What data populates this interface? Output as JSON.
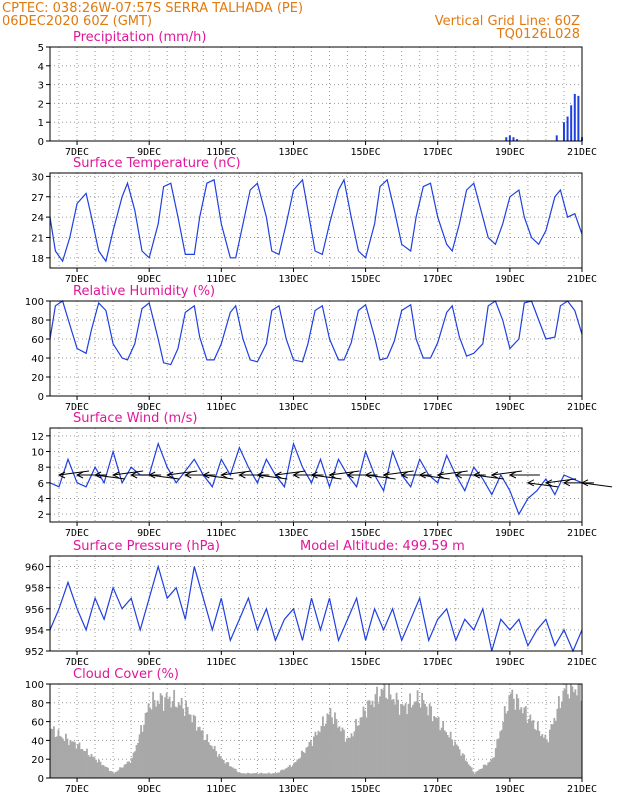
{
  "header": {
    "source_coords": "CPTEC:  038:26W-07:57S  SERRA TALHADA (PE)",
    "run_time": "06DEC2020 60Z (GMT)",
    "grid_line": "Vertical Grid Line: 60Z",
    "code": "TQ0126L028"
  },
  "colors": {
    "header_text": "#e07a10",
    "title_text": "#e0179a",
    "series_line": "#1f3fe0",
    "bar_fill": "#1f3fe0",
    "cloud_fill": "#a8a8a8",
    "grid": "#9a9a9a"
  },
  "x_axis": {
    "start": "06DEC2020 06Z",
    "end": "21DEC2020 00Z",
    "tick_labels": [
      "7DEC",
      "9DEC",
      "11DEC",
      "13DEC",
      "15DEC",
      "17DEC",
      "19DEC",
      "21DEC"
    ],
    "grid": "dotted, every 12h"
  },
  "chart_data": [
    {
      "type": "bar",
      "title": "Precipitation (mm/h)",
      "ylim": [
        0,
        5
      ],
      "yticks": [
        0,
        1,
        2,
        3,
        4,
        5
      ],
      "x": [
        18.9,
        19.0,
        19.1,
        19.2,
        20.3,
        20.5,
        20.6,
        20.7,
        20.8,
        20.9,
        21.0
      ],
      "values": [
        0.2,
        0.3,
        0.2,
        0.1,
        0.3,
        1.0,
        1.3,
        1.9,
        2.5,
        2.4,
        0.2
      ]
    },
    {
      "type": "line",
      "title": "Surface Temperature (nC)",
      "ylim": [
        16.5,
        30.5
      ],
      "yticks": [
        18,
        21,
        24,
        27,
        30
      ],
      "x": [
        6.25,
        6.4,
        6.6,
        6.8,
        7.0,
        7.25,
        7.4,
        7.6,
        7.8,
        8.0,
        8.25,
        8.4,
        8.6,
        8.8,
        9.0,
        9.25,
        9.4,
        9.6,
        9.8,
        10.0,
        10.25,
        10.4,
        10.6,
        10.8,
        11.0,
        11.25,
        11.4,
        11.6,
        11.8,
        12.0,
        12.25,
        12.4,
        12.6,
        12.8,
        13.0,
        13.25,
        13.4,
        13.6,
        13.8,
        14.0,
        14.25,
        14.4,
        14.6,
        14.8,
        15.0,
        15.25,
        15.4,
        15.6,
        15.8,
        16.0,
        16.25,
        16.4,
        16.6,
        16.8,
        17.0,
        17.25,
        17.4,
        17.6,
        17.8,
        18.0,
        18.25,
        18.4,
        18.6,
        18.8,
        19.0,
        19.25,
        19.4,
        19.6,
        19.8,
        20.0,
        20.25,
        20.4,
        20.6,
        20.8,
        21.0
      ],
      "values": [
        24,
        19,
        17.5,
        21,
        26,
        27.5,
        24,
        19,
        17.5,
        22,
        27,
        29,
        25,
        19,
        18,
        23,
        28.5,
        29,
        24,
        18.5,
        18.5,
        24,
        29,
        29.5,
        23,
        18,
        18,
        23,
        28,
        29,
        24,
        19,
        18.5,
        23,
        28,
        29.5,
        25,
        19,
        18.5,
        23,
        28,
        29.5,
        24,
        19,
        18,
        23,
        28.5,
        29.5,
        25,
        20,
        19,
        24,
        28.5,
        29,
        24,
        20,
        19,
        23,
        28,
        29,
        24,
        21,
        20,
        23,
        27,
        28,
        24,
        21,
        20,
        22,
        27,
        28,
        24,
        24.5,
        21.5
      ]
    },
    {
      "type": "line",
      "title": "Relative Humidity (%)",
      "ylim": [
        0,
        100
      ],
      "yticks": [
        0,
        20,
        40,
        60,
        80,
        100
      ],
      "x": [
        6.25,
        6.4,
        6.6,
        6.8,
        7.0,
        7.25,
        7.4,
        7.6,
        7.8,
        8.0,
        8.25,
        8.4,
        8.6,
        8.8,
        9.0,
        9.25,
        9.4,
        9.6,
        9.8,
        10.0,
        10.25,
        10.4,
        10.6,
        10.8,
        11.0,
        11.25,
        11.4,
        11.6,
        11.8,
        12.0,
        12.25,
        12.4,
        12.6,
        12.8,
        13.0,
        13.25,
        13.4,
        13.6,
        13.8,
        14.0,
        14.25,
        14.4,
        14.6,
        14.8,
        15.0,
        15.25,
        15.4,
        15.6,
        15.8,
        16.0,
        16.25,
        16.4,
        16.6,
        16.8,
        17.0,
        17.25,
        17.4,
        17.6,
        17.8,
        18.0,
        18.25,
        18.4,
        18.6,
        18.8,
        19.0,
        19.25,
        19.4,
        19.6,
        19.8,
        20.0,
        20.25,
        20.4,
        20.6,
        20.8,
        21.0
      ],
      "values": [
        60,
        95,
        100,
        75,
        50,
        45,
        70,
        98,
        90,
        55,
        40,
        38,
        55,
        92,
        98,
        60,
        35,
        33,
        50,
        88,
        95,
        62,
        38,
        38,
        55,
        88,
        95,
        60,
        38,
        36,
        55,
        90,
        95,
        60,
        38,
        36,
        55,
        90,
        95,
        60,
        38,
        38,
        56,
        90,
        96,
        62,
        38,
        40,
        58,
        90,
        96,
        60,
        40,
        40,
        56,
        88,
        95,
        62,
        42,
        45,
        55,
        95,
        100,
        80,
        50,
        60,
        98,
        100,
        80,
        60,
        62,
        95,
        100,
        90,
        65
      ]
    },
    {
      "type": "line",
      "title": "Surface Wind (m/s)",
      "ylim": [
        1,
        13
      ],
      "yticks": [
        2,
        4,
        6,
        8,
        10,
        12
      ],
      "x": [
        6.25,
        6.5,
        6.75,
        7.0,
        7.25,
        7.5,
        7.75,
        8.0,
        8.25,
        8.5,
        8.75,
        9.0,
        9.25,
        9.5,
        9.75,
        10.0,
        10.25,
        10.5,
        10.75,
        11.0,
        11.25,
        11.5,
        11.75,
        12.0,
        12.25,
        12.5,
        12.75,
        13.0,
        13.25,
        13.5,
        13.75,
        14.0,
        14.25,
        14.5,
        14.75,
        15.0,
        15.25,
        15.5,
        15.75,
        16.0,
        16.25,
        16.5,
        16.75,
        17.0,
        17.25,
        17.5,
        17.75,
        18.0,
        18.25,
        18.5,
        18.75,
        19.0,
        19.25,
        19.5,
        19.75,
        20.0,
        20.25,
        20.5,
        20.75,
        21.0
      ],
      "values": [
        6,
        5.5,
        9,
        6,
        5.5,
        8,
        6,
        10,
        6,
        8,
        7,
        7,
        11,
        8,
        6,
        7.5,
        9,
        7,
        5.5,
        9,
        7,
        10.5,
        8,
        6,
        9,
        7,
        5.5,
        11,
        8,
        6,
        9,
        5.5,
        9,
        7,
        5.5,
        10,
        7,
        5,
        10,
        7,
        5.5,
        9,
        7,
        6,
        9.5,
        7,
        5,
        8,
        6.5,
        4.5,
        7,
        5,
        2,
        4,
        5,
        6.5,
        4.5,
        7,
        6.5,
        6
      ],
      "arrows": {
        "x": [
          6.5,
          7.0,
          7.5,
          8.0,
          8.5,
          9.0,
          9.5,
          10.0,
          10.5,
          11.0,
          11.5,
          12.0,
          12.5,
          13.0,
          13.5,
          14.0,
          14.5,
          15.0,
          15.5,
          16.0,
          16.5,
          17.0,
          17.5,
          18.0,
          18.5,
          19.0,
          19.5,
          20.0,
          20.5,
          21.0
        ],
        "y": [
          7,
          7,
          7,
          7,
          7,
          7,
          7,
          7,
          7,
          7,
          7,
          7,
          7,
          7,
          7,
          7,
          7,
          7,
          7,
          7,
          7,
          7,
          7,
          7,
          7,
          7,
          6,
          6,
          6,
          6
        ]
      }
    },
    {
      "type": "line",
      "title": "Surface Pressure (hPa)",
      "annotation": "Model Altitude: 499.59  m",
      "ylim": [
        952,
        961
      ],
      "yticks": [
        952,
        954,
        956,
        958,
        960
      ],
      "x": [
        6.25,
        6.5,
        6.75,
        7.0,
        7.25,
        7.5,
        7.75,
        8.0,
        8.25,
        8.5,
        8.75,
        9.0,
        9.25,
        9.5,
        9.75,
        10.0,
        10.25,
        10.5,
        10.75,
        11.0,
        11.25,
        11.5,
        11.75,
        12.0,
        12.25,
        12.5,
        12.75,
        13.0,
        13.25,
        13.5,
        13.75,
        14.0,
        14.25,
        14.5,
        14.75,
        15.0,
        15.25,
        15.5,
        15.75,
        16.0,
        16.25,
        16.5,
        16.75,
        17.0,
        17.25,
        17.5,
        17.75,
        18.0,
        18.25,
        18.5,
        18.75,
        19.0,
        19.25,
        19.5,
        19.75,
        20.0,
        20.25,
        20.5,
        20.75,
        21.0
      ],
      "values": [
        954,
        956,
        958.5,
        956,
        954,
        957,
        955,
        958,
        956,
        957,
        954,
        957,
        960,
        957,
        958,
        955,
        960,
        957,
        954,
        957,
        953,
        955,
        957,
        954,
        956,
        953,
        955,
        956,
        953,
        957,
        954,
        957,
        953,
        955,
        957,
        953,
        956,
        954,
        956,
        953,
        955,
        957,
        953,
        955,
        956,
        953,
        955,
        954,
        956,
        952,
        955,
        954,
        955,
        952.5,
        954,
        955,
        952.5,
        954,
        952,
        954
      ]
    },
    {
      "type": "area",
      "title": "Cloud Cover (%)",
      "ylim": [
        0,
        100
      ],
      "yticks": [
        0,
        20,
        40,
        60,
        80,
        100
      ],
      "x": [
        6.0,
        6.5,
        7.0,
        7.5,
        8.0,
        8.5,
        9.0,
        9.5,
        10.0,
        10.5,
        11.0,
        11.5,
        12.0,
        12.5,
        13.0,
        13.5,
        14.0,
        14.5,
        15.0,
        15.5,
        16.0,
        16.5,
        17.0,
        17.5,
        18.0,
        18.5,
        19.0,
        19.5,
        20.0,
        20.5,
        21.0
      ],
      "values": [
        60,
        45,
        35,
        20,
        5,
        20,
        80,
        85,
        75,
        45,
        20,
        5,
        5,
        5,
        15,
        40,
        70,
        40,
        75,
        95,
        75,
        85,
        60,
        35,
        5,
        20,
        90,
        65,
        40,
        95,
        95
      ]
    }
  ]
}
